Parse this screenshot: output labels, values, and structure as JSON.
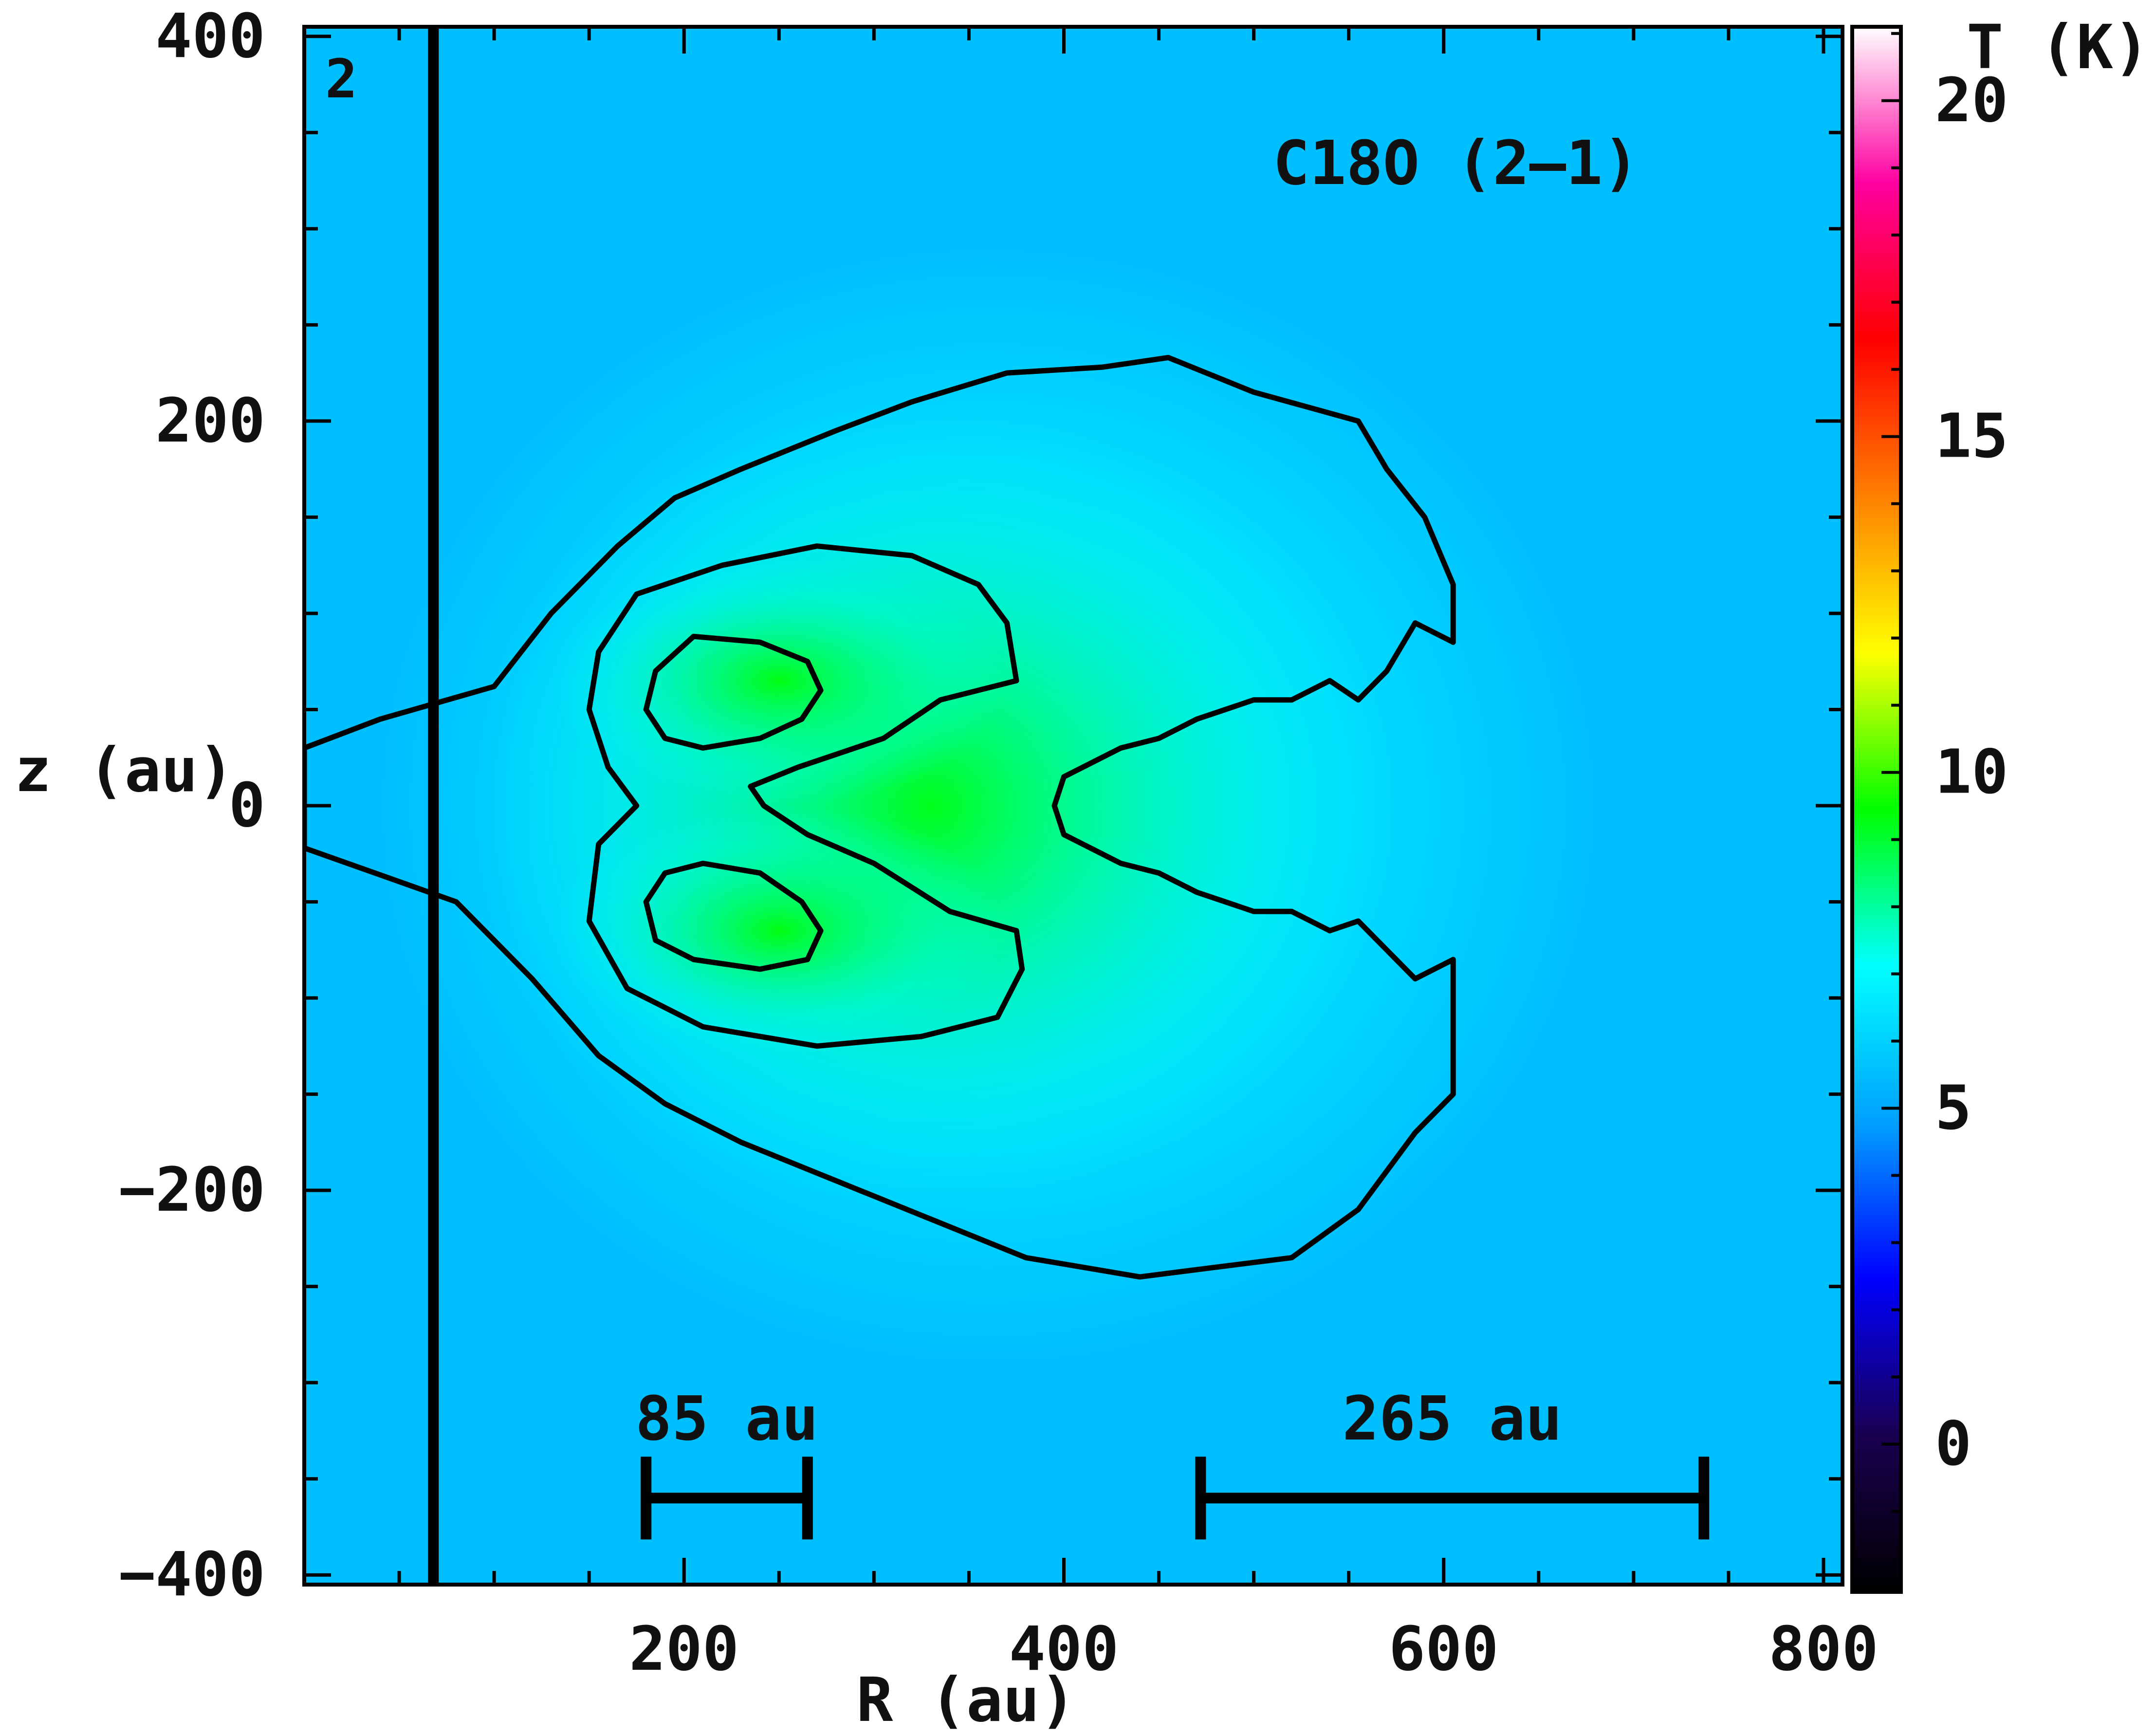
{
  "chart_data": {
    "type": "heatmap",
    "panel_label": "2",
    "line_label": "C18O (2–1)",
    "xlabel": "R (au)",
    "ylabel": "z (au)",
    "xlim": [
      0,
      810
    ],
    "ylim": [
      -405,
      405
    ],
    "x_ticks": [
      200,
      400,
      600,
      800
    ],
    "y_ticks": [
      -400,
      -200,
      0,
      200,
      400
    ],
    "y_tick_labels": [
      "−400",
      "−200",
      "0",
      "200",
      "400"
    ],
    "colorbar": {
      "label": "T (K)",
      "range": [
        -2.2,
        21.1
      ],
      "ticks": [
        0,
        5,
        10,
        15,
        20
      ],
      "colormap": [
        "#000000",
        "#1a0050",
        "#0000ff",
        "#00a0ff",
        "#00ffff",
        "#00ff00",
        "#ffff00",
        "#ff8000",
        "#ff0000",
        "#ff00a0",
        "#ffffff"
      ]
    },
    "background_color": "#00bfff",
    "vertical_line_x": 68,
    "contours": [
      {
        "level": "outer",
        "points": [
          [
            0,
            30
          ],
          [
            40,
            45
          ],
          [
            100,
            62
          ],
          [
            130,
            100
          ],
          [
            165,
            135
          ],
          [
            195,
            160
          ],
          [
            230,
            175
          ],
          [
            280,
            195
          ],
          [
            320,
            210
          ],
          [
            370,
            225
          ],
          [
            420,
            228
          ],
          [
            455,
            233
          ],
          [
            500,
            215
          ],
          [
            555,
            200
          ],
          [
            570,
            175
          ],
          [
            590,
            150
          ],
          [
            605,
            115
          ],
          [
            605,
            85
          ],
          [
            585,
            95
          ],
          [
            570,
            70
          ],
          [
            555,
            55
          ],
          [
            540,
            65
          ],
          [
            520,
            55
          ],
          [
            500,
            55
          ],
          [
            485,
            50
          ],
          [
            470,
            45
          ],
          [
            460,
            40
          ],
          [
            450,
            35
          ],
          [
            430,
            30
          ],
          [
            400,
            15
          ],
          [
            395,
            0
          ],
          [
            400,
            -15
          ],
          [
            430,
            -30
          ],
          [
            450,
            -35
          ],
          [
            460,
            -40
          ],
          [
            470,
            -45
          ],
          [
            485,
            -50
          ],
          [
            500,
            -55
          ],
          [
            520,
            -55
          ],
          [
            540,
            -65
          ],
          [
            555,
            -60
          ],
          [
            570,
            -75
          ],
          [
            585,
            -90
          ],
          [
            605,
            -80
          ],
          [
            605,
            -150
          ],
          [
            585,
            -170
          ],
          [
            570,
            -190
          ],
          [
            555,
            -210
          ],
          [
            520,
            -235
          ],
          [
            480,
            -240
          ],
          [
            440,
            -245
          ],
          [
            380,
            -235
          ],
          [
            330,
            -215
          ],
          [
            280,
            -195
          ],
          [
            230,
            -175
          ],
          [
            190,
            -155
          ],
          [
            155,
            -130
          ],
          [
            120,
            -90
          ],
          [
            80,
            -50
          ],
          [
            0,
            -22
          ]
        ]
      },
      {
        "level": "mid",
        "points": [
          [
            155,
            80
          ],
          [
            175,
            110
          ],
          [
            220,
            125
          ],
          [
            270,
            135
          ],
          [
            320,
            130
          ],
          [
            355,
            115
          ],
          [
            370,
            95
          ],
          [
            375,
            65
          ],
          [
            335,
            55
          ],
          [
            305,
            35
          ],
          [
            260,
            20
          ],
          [
            235,
            10
          ],
          [
            242,
            0
          ],
          [
            265,
            -15
          ],
          [
            300,
            -30
          ],
          [
            340,
            -55
          ],
          [
            375,
            -65
          ],
          [
            378,
            -85
          ],
          [
            365,
            -110
          ],
          [
            325,
            -120
          ],
          [
            270,
            -125
          ],
          [
            210,
            -115
          ],
          [
            170,
            -95
          ],
          [
            150,
            -60
          ],
          [
            155,
            -20
          ],
          [
            175,
            0
          ],
          [
            160,
            20
          ],
          [
            150,
            50
          ]
        ]
      },
      {
        "level": "inner",
        "points": [
          [
            180,
            50
          ],
          [
            185,
            70
          ],
          [
            205,
            88
          ],
          [
            240,
            85
          ],
          [
            265,
            75
          ],
          [
            272,
            60
          ],
          [
            262,
            45
          ],
          [
            240,
            35
          ],
          [
            210,
            30
          ],
          [
            190,
            35
          ]
        ]
      },
      {
        "level": "inner",
        "points": [
          [
            180,
            -50
          ],
          [
            185,
            -70
          ],
          [
            205,
            -80
          ],
          [
            240,
            -85
          ],
          [
            265,
            -80
          ],
          [
            272,
            -65
          ],
          [
            262,
            -50
          ],
          [
            240,
            -35
          ],
          [
            210,
            -30
          ],
          [
            190,
            -35
          ]
        ]
      }
    ],
    "scale_bars": [
      {
        "label": "85 au",
        "x_start": 180,
        "x_end": 265,
        "y": -360
      },
      {
        "label": "265 au",
        "x_start": 472,
        "x_end": 737,
        "y": -360
      }
    ]
  }
}
